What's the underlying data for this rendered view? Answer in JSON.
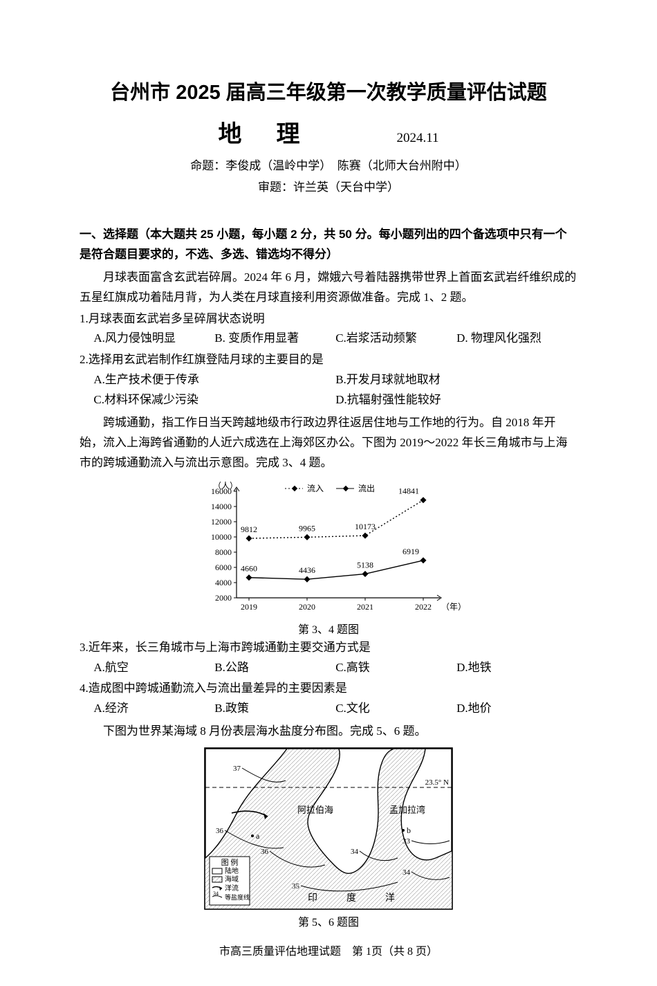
{
  "title_main": "台州市 2025 届高三年级第一次教学质量评估试题",
  "title_sub": "地理",
  "title_date": "2024.11",
  "credits_line1": "命题：李俊成（温岭中学）　陈赛（北师大台州附中）",
  "credits_line2": "审题：许兰英（天台中学）",
  "section1_head": "一、选择题（本大题共 25 小题，每小题 2 分，共 50 分。每小题列出的四个备选项中只有一个是符合题目要求的，不选、多选、错选均不得分）",
  "context1": "月球表面富含玄武岩碎屑。2024 年 6 月，嫦娥六号着陆器携带世界上首面玄武岩纤维织成的五星红旗成功着陆月背，为人类在月球直接利用资源做准备。完成 1、2 题。",
  "q1": "1.月球表面玄武岩多呈碎屑状态说明",
  "q1_opts": {
    "A": "A.风力侵蚀明显",
    "B": "B. 变质作用显著",
    "C": "C.岩浆活动频繁",
    "D": "D. 物理风化强烈"
  },
  "q2": "2.选择用玄武岩制作红旗登陆月球的主要目的是",
  "q2_opts": {
    "A": "A.生产技术便于传承",
    "B": "B.开发月球就地取材",
    "C": "C.材料环保减少污染",
    "D": "D.抗辐射强性能较好"
  },
  "context2": "跨城通勤，指工作日当天跨越地级市行政边界往返居住地与工作地的行为。自 2018 年开始，流入上海跨省通勤的人近六成选在上海郊区办公。下图为 2019～2022 年长三角城市与上海市的跨城通勤流入与流出示意图。完成 3、4 题。",
  "chart34": {
    "type": "line",
    "x_label": "（年）",
    "y_label": "（人）",
    "years": [
      "2019",
      "2020",
      "2021",
      "2022"
    ],
    "series": [
      {
        "name": "流入",
        "values": [
          9812,
          9965,
          10173,
          14841
        ],
        "style": "dotted",
        "marker": "diamond",
        "color": "#000000"
      },
      {
        "name": "流出",
        "values": [
          4660,
          4436,
          5138,
          6919
        ],
        "style": "solid",
        "marker": "diamond",
        "color": "#000000"
      }
    ],
    "y_ticks": [
      2000,
      4000,
      6000,
      8000,
      10000,
      12000,
      14000,
      16000
    ],
    "legend_labels": {
      "in": "流入",
      "out": "流出"
    },
    "caption": "第 3、4 题图",
    "background": "#ffffff",
    "axis_color": "#000000",
    "font_size": 12
  },
  "q3": "3.近年来，长三角城市与上海市跨城通勤主要交通方式是",
  "q3_opts": {
    "A": "A.航空",
    "B": "B.公路",
    "C": "C.高铁",
    "D": "D.地铁"
  },
  "q4": "4.造成图中跨城通勤流入与流出量差异的主要因素是",
  "q4_opts": {
    "A": "A.经济",
    "B": "B.政策",
    "C": "C.文化",
    "D": "D.地价"
  },
  "context3": "下图为世界某海域 8 月份表层海水盐度分布图。完成 5、6 题。",
  "map56": {
    "type": "map",
    "caption": "第 5、6 题图",
    "lat_line": "23.5° N",
    "labels": {
      "sea1": "阿拉伯海",
      "bay": "孟加拉湾",
      "ocean": "印　度　洋"
    },
    "contours": [
      "37",
      "36",
      "36",
      "35",
      "34",
      "34",
      "33"
    ],
    "points": [
      "a",
      "b"
    ],
    "legend": {
      "land": "陆地",
      "sea": "海域",
      "current": "洋流",
      "isoline": "等盐度线",
      "isoline_val": "34"
    },
    "legend_title": "图 例",
    "colors": {
      "land": "#ffffff",
      "sea_hatch": "#9a9a9a",
      "line": "#000000",
      "bg": "#ffffff"
    }
  },
  "footer": "市高三质量评估地理试题　第 1页（共 8 页）"
}
